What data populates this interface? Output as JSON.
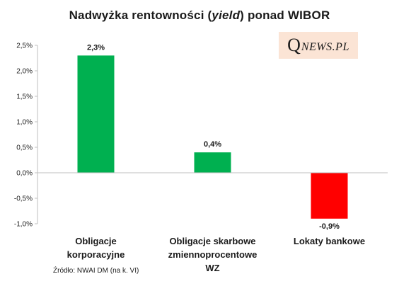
{
  "title_parts": {
    "before": "Nadwyżka rentowności (",
    "italic": "yield",
    "after": ") ponad  WIBOR"
  },
  "brand": {
    "q": "Q",
    "rest": "NEWS.PL",
    "bg": "#fbe4d5"
  },
  "source": "Źródło: NWAI DM (na k. VI)",
  "chart_data": {
    "type": "bar",
    "title": "Nadwyżka rentowności (yield) ponad  WIBOR",
    "categories": [
      [
        "Obligacje",
        "korporacyjne"
      ],
      [
        "Obligacje skarbowe",
        "zmiennoprocentowe",
        "WZ"
      ],
      [
        "Lokaty bankowe"
      ]
    ],
    "values": [
      2.3,
      0.4,
      -0.9
    ],
    "data_labels": [
      "2,3%",
      "0,4%",
      "-0,9%"
    ],
    "colors": [
      "#00b050",
      "#00b050",
      "#ff0000"
    ],
    "ylim": [
      -1.0,
      2.5
    ],
    "yticks": [
      2.5,
      2.0,
      1.5,
      1.0,
      0.5,
      0.0,
      -0.5,
      -1.0
    ],
    "ytick_labels": [
      "2,5%",
      "2,0%",
      "1,5%",
      "1,0%",
      "0,5%",
      "0,0%",
      "-0,5%",
      "-1,0%"
    ],
    "grid": false,
    "xlabel": "",
    "ylabel": ""
  }
}
